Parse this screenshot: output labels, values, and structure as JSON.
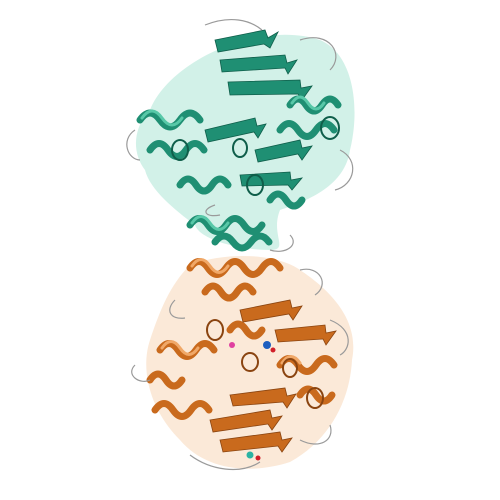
{
  "image": {
    "subject": "protein-ribbon-structure",
    "background": "#ffffff",
    "chains": [
      {
        "id": "chain-a",
        "color": "#1f8f73",
        "color_light": "#58c8a8",
        "region": "top"
      },
      {
        "id": "chain-b",
        "color": "#c96a1d",
        "color_light": "#f0a868",
        "region": "bottom"
      }
    ],
    "ligand_colors": [
      "#1e5fbf",
      "#d11f2a",
      "#2bb3a3",
      "#e040a0"
    ],
    "loop_color": "#9a9a9a"
  }
}
